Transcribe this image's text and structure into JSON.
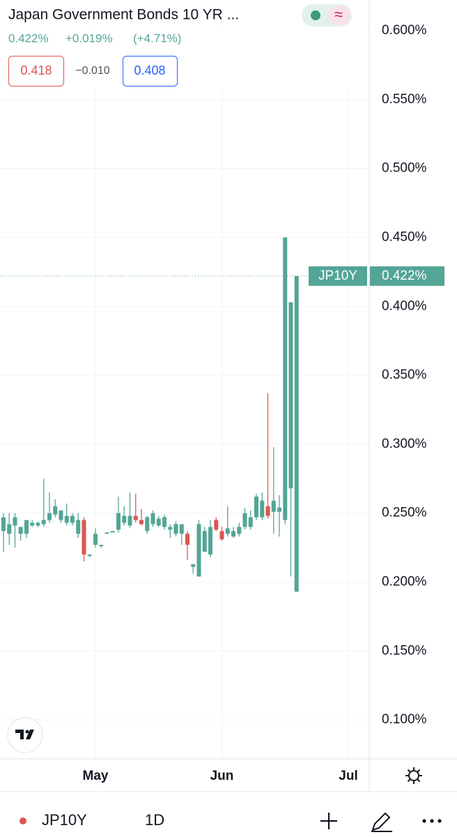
{
  "header": {
    "title": "Japan Government Bonds 10 YR ...",
    "price": "0.422%",
    "change": "+0.019%",
    "change_pct": "(+4.71%)",
    "sell": "0.418",
    "spread": "−0.010",
    "buy": "0.408"
  },
  "toolbar": {
    "symbol": "JP10Y",
    "interval": "1D"
  },
  "chart_data": {
    "type": "candlestick",
    "symbol": "JP10Y",
    "last_price_label": "0.422%",
    "up_color": "#53a596",
    "down_color": "#de5550",
    "categories": [
      null,
      null,
      null,
      null,
      null,
      null,
      null,
      null,
      null,
      null,
      null,
      null,
      null,
      null,
      null,
      null,
      "May",
      null,
      null,
      null,
      null,
      null,
      null,
      null,
      null,
      null,
      null,
      null,
      null,
      null,
      null,
      null,
      null,
      null,
      null,
      null,
      null,
      null,
      "Jun",
      null,
      null,
      null,
      null,
      null,
      null,
      null,
      null,
      null,
      null,
      null,
      null,
      null,
      null,
      null,
      null,
      null,
      null,
      null,
      null,
      null,
      "Jul"
    ],
    "open": [
      0.237,
      0.235,
      0.241,
      0.235,
      0.235,
      0.241,
      0.241,
      0.242,
      0.245,
      0.249,
      0.245,
      0.243,
      0.243,
      0.235,
      0.245,
      0.219,
      0.227,
      0.226,
      0.235,
      0.236,
      0.238,
      0.243,
      0.241,
      0.248,
      0.245,
      0.237,
      0.242,
      0.241,
      0.24,
      0.238,
      0.235,
      0.235,
      0.235,
      0.211,
      0.204,
      0.222,
      0.22,
      0.245,
      0.237,
      0.235,
      0.233,
      0.235,
      0.24,
      0.24,
      0.247,
      0.247,
      0.255,
      0.251,
      0.251,
      0.245,
      0.268,
      0.193,
      null,
      null,
      null,
      null,
      null,
      null,
      null,
      null,
      null
    ],
    "high": [
      0.25,
      0.25,
      0.25,
      0.24,
      0.245,
      0.245,
      0.244,
      0.275,
      0.265,
      0.26,
      0.252,
      0.257,
      0.25,
      0.25,
      0.247,
      0.22,
      0.239,
      0.227,
      0.236,
      0.237,
      0.262,
      0.255,
      0.265,
      0.264,
      0.253,
      0.248,
      0.252,
      0.248,
      0.249,
      0.242,
      0.244,
      0.242,
      0.237,
      0.213,
      0.245,
      0.24,
      0.245,
      0.247,
      0.24,
      0.255,
      0.24,
      0.243,
      0.254,
      0.252,
      0.264,
      0.265,
      0.337,
      0.298,
      0.263,
      0.45,
      0.403,
      0.422,
      null,
      null,
      null,
      null,
      null,
      null,
      null,
      null,
      null
    ],
    "low": [
      0.222,
      0.227,
      0.225,
      0.23,
      0.232,
      0.24,
      0.24,
      0.24,
      0.243,
      0.247,
      0.243,
      0.241,
      0.241,
      0.232,
      0.215,
      0.218,
      0.225,
      0.225,
      0.235,
      0.236,
      0.236,
      0.241,
      0.239,
      0.243,
      0.241,
      0.235,
      0.24,
      0.24,
      0.238,
      0.232,
      0.233,
      0.227,
      0.216,
      0.206,
      0.204,
      0.222,
      0.218,
      0.237,
      0.23,
      0.233,
      0.232,
      0.233,
      0.238,
      0.238,
      0.245,
      0.245,
      0.246,
      0.235,
      0.233,
      0.242,
      0.204,
      0.193,
      null,
      null,
      null,
      null,
      null,
      null,
      null,
      null,
      null
    ],
    "close": [
      0.247,
      0.242,
      0.247,
      0.24,
      0.245,
      0.243,
      0.243,
      0.245,
      0.25,
      0.255,
      0.252,
      0.248,
      0.248,
      0.245,
      0.22,
      0.22,
      0.235,
      0.227,
      0.236,
      0.237,
      0.25,
      0.248,
      0.248,
      0.245,
      0.242,
      0.247,
      0.25,
      0.246,
      0.247,
      0.24,
      0.242,
      0.242,
      0.227,
      0.213,
      0.242,
      0.237,
      0.24,
      0.238,
      0.231,
      0.239,
      0.237,
      0.24,
      0.25,
      0.247,
      0.262,
      0.259,
      0.248,
      0.259,
      0.254,
      0.45,
      0.403,
      0.422,
      null,
      null,
      null,
      null,
      null,
      null,
      null,
      null,
      null
    ],
    "ylim": [
      0.0717,
      0.6223
    ],
    "yticks": [
      {
        "value": 0.1,
        "label": "0.100%"
      },
      {
        "value": 0.15,
        "label": "0.150%"
      },
      {
        "value": 0.2,
        "label": "0.200%"
      },
      {
        "value": 0.25,
        "label": "0.250%"
      },
      {
        "value": 0.3,
        "label": "0.300%"
      },
      {
        "value": 0.35,
        "label": "0.350%"
      },
      {
        "value": 0.4,
        "label": "0.400%"
      },
      {
        "value": 0.45,
        "label": "0.450%"
      },
      {
        "value": 0.5,
        "label": "0.500%"
      },
      {
        "value": 0.55,
        "label": "0.550%"
      },
      {
        "value": 0.6,
        "label": "0.600%"
      }
    ],
    "grid": true
  }
}
